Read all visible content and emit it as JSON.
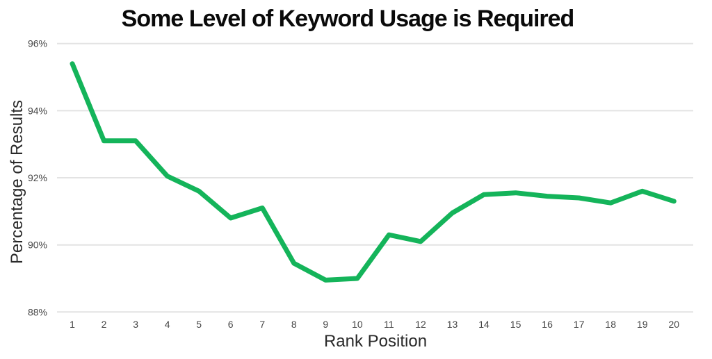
{
  "chart_data": {
    "type": "line",
    "title": "Some Level of Keyword Usage is Required",
    "xlabel": "Rank Position",
    "ylabel": "Percentage of Results",
    "x": [
      "1",
      "2",
      "3",
      "4",
      "5",
      "6",
      "7",
      "8",
      "9",
      "10",
      "11",
      "12",
      "13",
      "14",
      "15",
      "16",
      "17",
      "18",
      "19",
      "20"
    ],
    "series": [
      {
        "name": "Percentage of Results",
        "values": [
          95.4,
          93.1,
          93.1,
          92.05,
          91.6,
          90.8,
          91.1,
          89.45,
          88.95,
          89.0,
          90.3,
          90.1,
          90.95,
          91.5,
          91.55,
          91.45,
          91.4,
          91.25,
          91.6,
          91.3
        ]
      }
    ],
    "ylim": [
      88,
      96
    ],
    "yticks": [
      {
        "value": 96,
        "label": "96%"
      },
      {
        "value": 94,
        "label": "94%"
      },
      {
        "value": 92,
        "label": "92%"
      },
      {
        "value": 90,
        "label": "90%"
      },
      {
        "value": 88,
        "label": "88%"
      }
    ],
    "grid": "horizontal",
    "legend": "none",
    "colors": {
      "line": "#14b45a",
      "grid": "#e3e3e3",
      "tick_label": "#454545",
      "axis_label": "#2a2a2a",
      "title": "#0a0a0a",
      "background": "#ffffff"
    }
  }
}
